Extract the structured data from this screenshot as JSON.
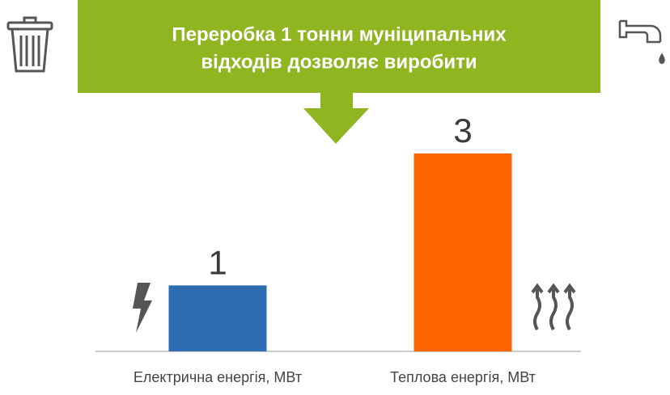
{
  "chart_data": {
    "type": "bar",
    "title": [
      "Переробка 1 тонни муніципальних",
      "відходів дозволяє виробити"
    ],
    "categories": [
      "Електрична енергія, МВт",
      "Теплова енергія, МВт"
    ],
    "values": [
      1,
      3
    ],
    "colors": [
      "#2e6db4",
      "#ff6600"
    ],
    "ylim": [
      0,
      3
    ]
  }
}
